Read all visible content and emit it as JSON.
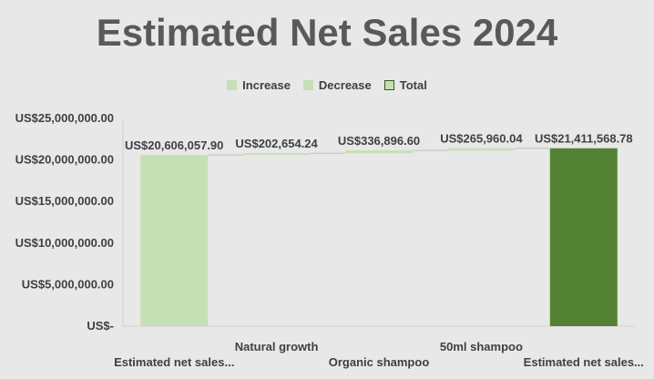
{
  "chart_data": {
    "type": "waterfall",
    "title": "Estimated Net Sales 2024",
    "legend": {
      "placement": "top",
      "items": [
        {
          "label": "Increase",
          "color": "#c5e0b4"
        },
        {
          "label": "Decrease",
          "color": "#c5e0b4"
        },
        {
          "label": "Total",
          "color": "#c5e0b4"
        }
      ]
    },
    "categories": [
      "Estimated net sales...",
      "Natural growth",
      "Organic shampoo",
      "50ml shampoo",
      "Estimated net sales..."
    ],
    "values": [
      20606057.9,
      202654.24,
      336896.6,
      265960.04,
      21411568.78
    ],
    "kinds": [
      "total",
      "increase",
      "increase",
      "increase",
      "total"
    ],
    "data_labels": [
      "US$20,606,057.90",
      "US$202,654.24",
      "US$336,896.60",
      "US$265,960.04",
      "US$21,411,568.78"
    ],
    "ylim": [
      0,
      25000000
    ],
    "yticks": [
      0,
      5000000,
      10000000,
      15000000,
      20000000,
      25000000
    ],
    "ytick_labels": [
      "US$-",
      "US$5,000,000.00",
      "US$10,000,000.00",
      "US$15,000,000.00",
      "US$20,000,000.00",
      "US$25,000,000.00"
    ],
    "grid": false,
    "colors": {
      "start_total": "#c5e0b4",
      "increase": "#c5e0b4",
      "end_total": "#548235",
      "connector": "#bfbfbf"
    }
  }
}
